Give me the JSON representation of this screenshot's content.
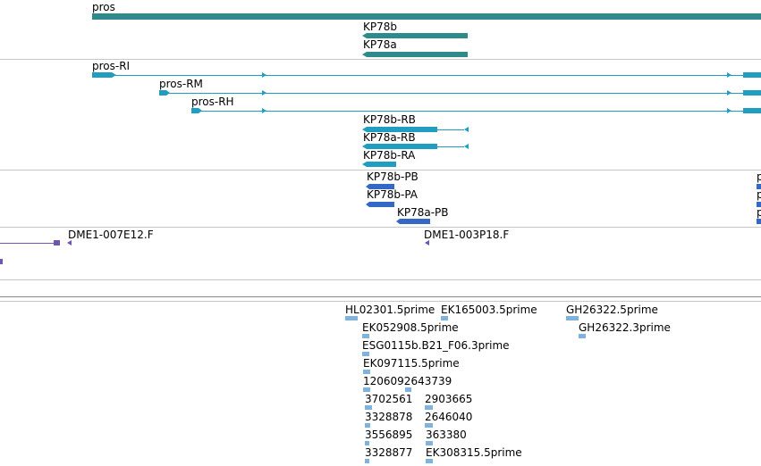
{
  "colors": {
    "gene": "#2f8a8c",
    "transcript": "#1f9ec2",
    "protein": "#3568c4",
    "clone": "#6f54b0",
    "est": "#7fb3de",
    "separator": "#c8c8c8"
  },
  "genes": [
    {
      "label": "pros"
    },
    {
      "label": "KP78b"
    },
    {
      "label": "KP78a"
    }
  ],
  "transcripts": [
    {
      "label": "pros-RI"
    },
    {
      "label": "pros-RM"
    },
    {
      "label": "pros-RH"
    },
    {
      "label": "KP78b-RB"
    },
    {
      "label": "KP78a-RB"
    },
    {
      "label": "KP78b-RA"
    }
  ],
  "proteins": [
    {
      "label": "KP78b-PB"
    },
    {
      "label": "KP78b-PA"
    },
    {
      "label": "KP78a-PB"
    },
    {
      "label": "p"
    },
    {
      "label": "p"
    },
    {
      "label": "p"
    }
  ],
  "clones": [
    {
      "label": "DME1-007E12.F"
    },
    {
      "label": "DME1-003P18.F"
    }
  ],
  "ests": [
    {
      "label": "HL02301.5prime"
    },
    {
      "label": "EK165003.5prime"
    },
    {
      "label": "GH26322.5prime"
    },
    {
      "label": "EK052908.5prime"
    },
    {
      "label": "GH26322.3prime"
    },
    {
      "label": "ESG0115b.B21_F06.3prime"
    },
    {
      "label": "EK097115.5prime"
    },
    {
      "label": "1206092643739"
    },
    {
      "label": "3702561"
    },
    {
      "label": "2903665"
    },
    {
      "label": "3328878"
    },
    {
      "label": "2646040"
    },
    {
      "label": "3556895"
    },
    {
      "label": "363380"
    },
    {
      "label": "3328877"
    },
    {
      "label": "EK308315.5prime"
    }
  ]
}
